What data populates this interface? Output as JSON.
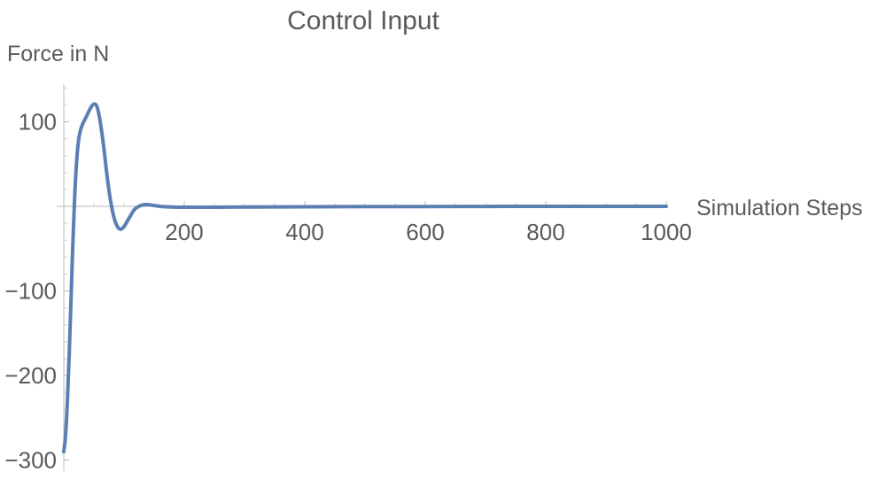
{
  "chart_data": {
    "type": "line",
    "title": "Control Input",
    "xlabel": "Simulation Steps",
    "ylabel": "Force in N",
    "xlim": [
      0,
      1000
    ],
    "ylim": [
      -300,
      140
    ],
    "x_ticks": [
      200,
      400,
      600,
      800,
      1000
    ],
    "x_tick_labels": [
      "200",
      "400",
      "600",
      "800",
      "1000"
    ],
    "y_ticks": [
      -300,
      -200,
      -100,
      100
    ],
    "y_tick_labels": [
      "−300",
      "−200",
      "−100",
      "100"
    ],
    "grid": false,
    "series_color": "#5b7fb2",
    "series": [
      {
        "x": [
          0,
          3,
          6,
          9,
          12,
          15,
          18,
          21,
          24,
          27,
          30,
          33,
          36,
          40,
          45,
          50,
          55,
          60,
          66,
          72,
          78,
          84,
          90,
          95,
          100,
          105,
          110,
          115,
          120,
          130,
          140,
          150,
          160,
          170,
          180,
          190,
          200,
          220,
          250,
          300,
          400,
          500,
          600,
          700,
          800,
          900,
          1000
        ],
        "y": [
          -290,
          -270,
          -230,
          -175,
          -110,
          -45,
          10,
          50,
          75,
          88,
          95,
          100,
          104,
          110,
          117,
          121,
          118,
          102,
          72,
          35,
          5,
          -15,
          -25,
          -27,
          -24,
          -18,
          -12,
          -6,
          -2,
          1.5,
          2,
          1,
          0,
          -0.5,
          -0.8,
          -1,
          -1,
          -1,
          -1,
          -0.8,
          -0.5,
          -0.3,
          -0.2,
          -0.1,
          0,
          0,
          0
        ]
      }
    ]
  }
}
